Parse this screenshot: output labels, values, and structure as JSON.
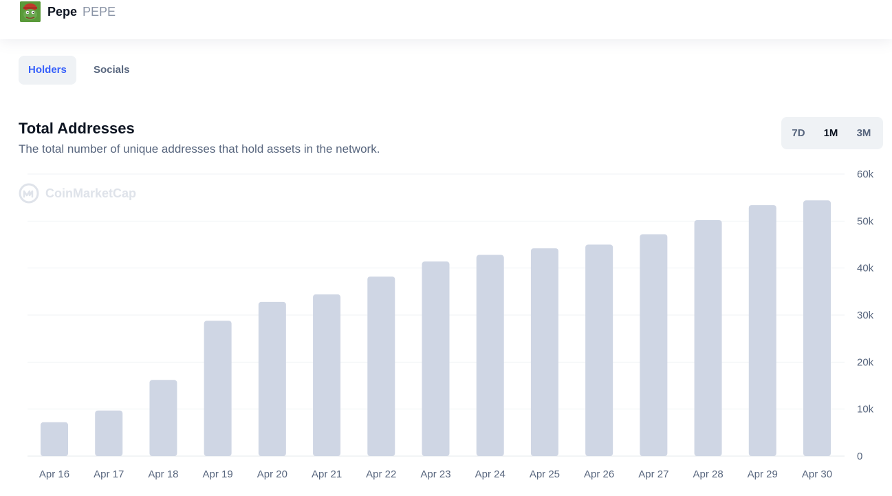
{
  "header": {
    "coin_name": "Pepe",
    "coin_symbol": "PEPE",
    "logo_icon": "pepe-logo-icon"
  },
  "tabs": [
    {
      "label": "Holders",
      "active": true
    },
    {
      "label": "Socials",
      "active": false
    }
  ],
  "section": {
    "title": "Total Addresses",
    "description": "The total number of unique addresses that hold assets in the network."
  },
  "range_selector": {
    "options": [
      "7D",
      "1M",
      "3M"
    ],
    "selected": "1M"
  },
  "watermark": {
    "text": "CoinMarketCap",
    "icon": "coinmarketcap-logo-icon"
  },
  "colors": {
    "bar": "#cfd6e4",
    "gridline": "#eff2f5",
    "accent": "#3861fb",
    "text_secondary": "#58667e"
  },
  "chart_data": {
    "type": "bar",
    "categories": [
      "Apr 16",
      "Apr 17",
      "Apr 18",
      "Apr 19",
      "Apr 20",
      "Apr 21",
      "Apr 22",
      "Apr 23",
      "Apr 24",
      "Apr 25",
      "Apr 26",
      "Apr 27",
      "Apr 28",
      "Apr 29",
      "Apr 30"
    ],
    "values": [
      7200,
      9700,
      16200,
      28800,
      32800,
      34400,
      38200,
      41400,
      42800,
      44200,
      45000,
      47200,
      50200,
      53400,
      54400
    ],
    "ylim": [
      0,
      60000
    ],
    "yticks": [
      0,
      10000,
      20000,
      30000,
      40000,
      50000,
      60000
    ],
    "ytick_labels": [
      "0",
      "10k",
      "20k",
      "30k",
      "40k",
      "50k",
      "60k"
    ],
    "y_axis_position": "right",
    "grid": true,
    "legend": "none"
  }
}
